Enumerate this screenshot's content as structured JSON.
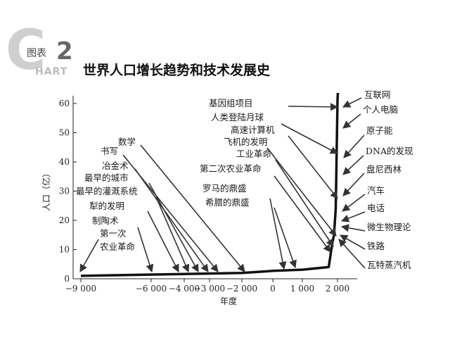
{
  "header": {
    "badge_c": "C",
    "badge_label": "图表",
    "badge_number": "2",
    "badge_art": "HART",
    "title": "世界人口增长趋势和技术发展史"
  },
  "chart_data": {
    "type": "line",
    "title": "世界人口增长趋势和技术发展史",
    "xlabel": "年度",
    "ylabel": "人口（亿）",
    "xlim": [
      -9500,
      2400
    ],
    "ylim": [
      0,
      62
    ],
    "x_ticks": [
      -9000,
      -6000,
      -4000,
      -3000,
      -2000,
      0,
      1000,
      2000
    ],
    "x_tick_labels": [
      "−9 000",
      "−6 000",
      "−4 000",
      "−3 000",
      "−2 000",
      "0",
      "1 000",
      "2 000"
    ],
    "y_ticks": [
      0,
      10,
      20,
      30,
      40,
      50,
      60
    ],
    "grid": false,
    "series": [
      {
        "values": [
          [
            -9000,
            1
          ],
          [
            -2000,
            2
          ],
          [
            0,
            2.7
          ],
          [
            1000,
            3.1
          ],
          [
            1750,
            4
          ],
          [
            1850,
            12
          ],
          [
            1900,
            15
          ],
          [
            1950,
            24
          ],
          [
            2000,
            61
          ],
          [
            2010,
            70
          ]
        ]
      }
    ],
    "annotations": [
      {
        "label": "第一次",
        "x": -9000
      },
      {
        "label": "农业革命",
        "x": -9000
      },
      {
        "label": "制陶术",
        "x": -6000
      },
      {
        "label": "犁的发明",
        "x": -4200
      },
      {
        "label": "最早的灌溉系统",
        "x": -4000
      },
      {
        "label": "最早的城市",
        "x": -3500
      },
      {
        "label": "冶金术",
        "x": -3000
      },
      {
        "label": "书写",
        "x": -3200
      },
      {
        "label": "数学",
        "x": -2000
      },
      {
        "label": "希腊的鼎盛",
        "x": 500
      },
      {
        "label": "罗马的鼎盛",
        "x": 100
      },
      {
        "label": "第二次农业革命",
        "x": 1700
      },
      {
        "label": "工业革命",
        "x": 1780
      },
      {
        "label": "飞机的发明",
        "x": 1903
      },
      {
        "label": "高速计算机",
        "x": 1950
      },
      {
        "label": "人类登陆月球",
        "x": 1969
      },
      {
        "label": "基因组项目",
        "x": 1990
      },
      {
        "label": "互联网",
        "x": 1995
      },
      {
        "label": "个人电脑",
        "x": 1980
      },
      {
        "label": "原子能",
        "x": 1945
      },
      {
        "label": "DNA的发现",
        "x": 1953
      },
      {
        "label": "盘尼西林",
        "x": 1928
      },
      {
        "label": "汽车",
        "x": 1886
      },
      {
        "label": "电话",
        "x": 1876
      },
      {
        "label": "微生物理论",
        "x": 1860
      },
      {
        "label": "铁路",
        "x": 1825
      },
      {
        "label": "瓦特蒸汽机",
        "x": 1769
      }
    ]
  }
}
